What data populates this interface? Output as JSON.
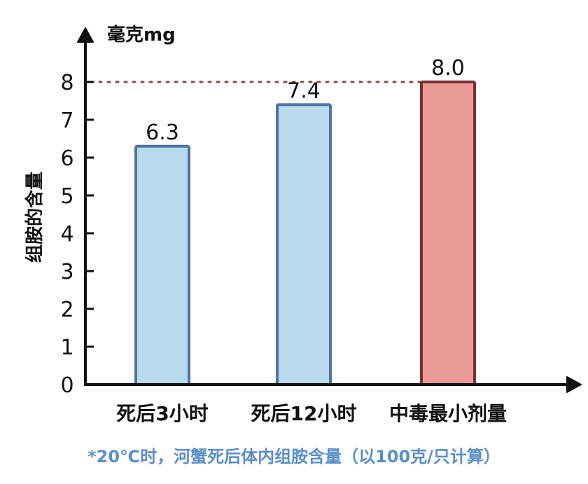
{
  "chart_data": {
    "type": "bar",
    "categories": [
      "死后3小时",
      "死后12小时",
      "中毒最小剂量"
    ],
    "values": [
      6.3,
      7.4,
      8.0
    ],
    "value_labels": [
      "6.3",
      "7.4",
      "8.0"
    ],
    "title": "",
    "xlabel": "",
    "ylabel": "组胺的含量",
    "y_unit": "毫克mg",
    "ylim": [
      0,
      8
    ],
    "yticks": [
      0,
      1,
      2,
      3,
      4,
      5,
      6,
      7,
      8
    ],
    "reference_line": {
      "value": 8,
      "style": "dotted",
      "color": "#8b4a4a"
    },
    "grid": false,
    "legend": "none",
    "bar_colors": [
      "#b9d9ee",
      "#b9d9ee",
      "#e99a94"
    ],
    "bar_edge_colors": [
      "#4f74a0",
      "#4f74a0",
      "#7a2f2f"
    ],
    "axis_color": "#111111",
    "footnote": "*20℃时，河蟹死后体内组胺含量（以100克/只计算）",
    "footnote_color": "#5a8fc9"
  }
}
